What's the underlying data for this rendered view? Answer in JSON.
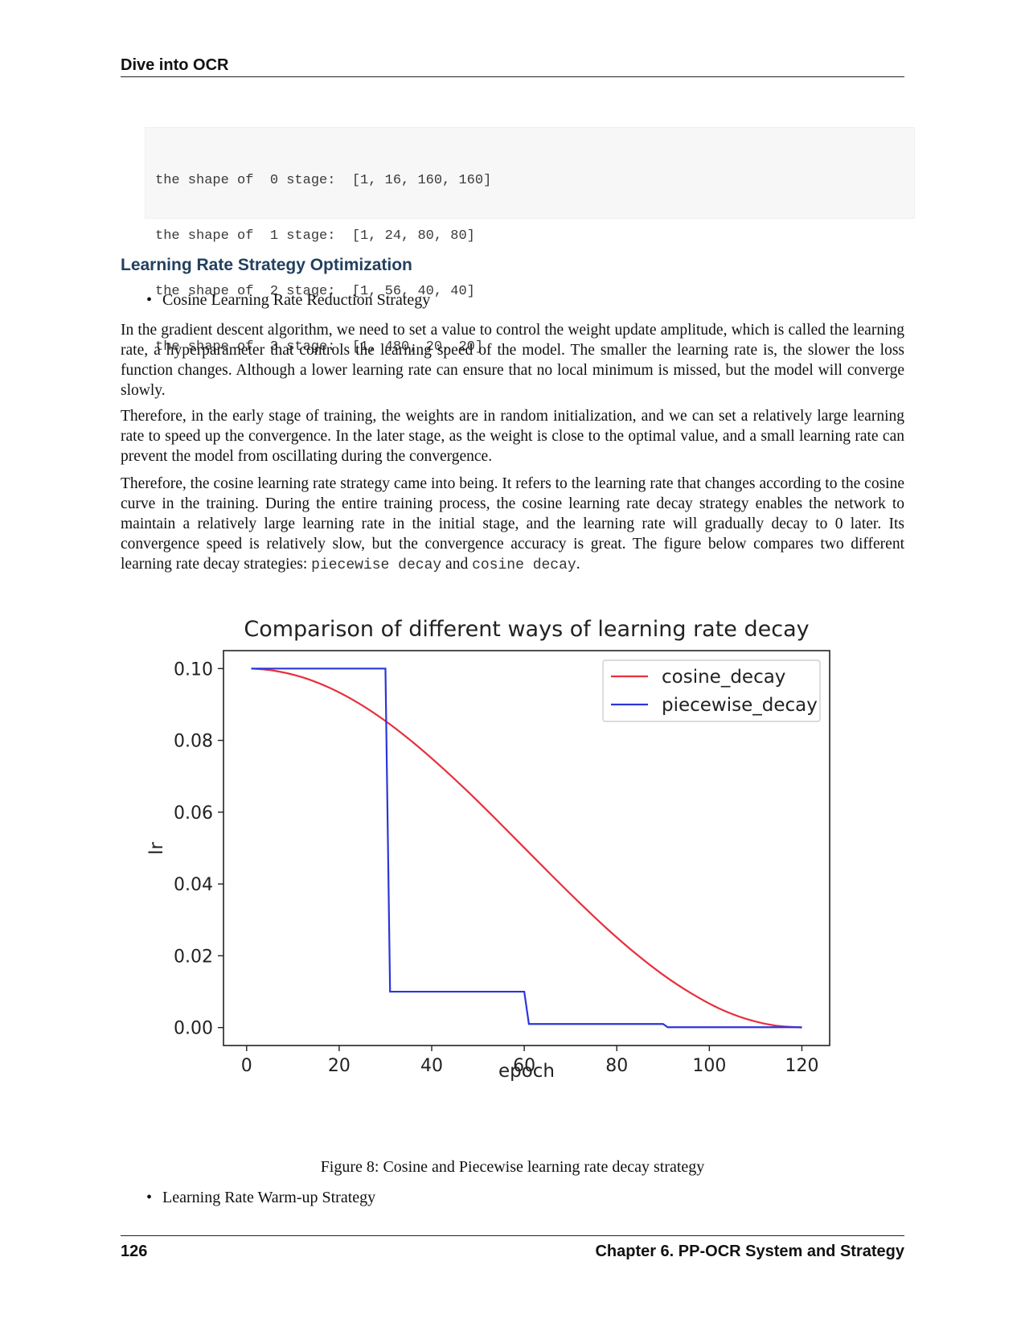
{
  "running_head": "Dive into OCR",
  "code_block": {
    "lines": [
      "the shape of  0 stage:  [1, 16, 160, 160]",
      "the shape of  1 stage:  [1, 24, 80, 80]",
      "the shape of  2 stage:  [1, 56, 40, 40]",
      "the shape of  3 stage:  [1, 480, 20, 20]"
    ]
  },
  "section_title": "Learning Rate Strategy Optimization",
  "bullets": {
    "first": "Cosine Learning Rate Reduction Strategy",
    "second": "Learning Rate Warm-up Strategy",
    "symbol": "•"
  },
  "paragraphs": {
    "p1": "In the gradient descent algorithm, we need to set a value to control the weight update amplitude, which is called the learning rate, a hyperparameter that controls the learning speed of the model. The smaller the learning rate is, the slower the loss function changes. Although a lower learning rate can ensure that no local minimum is missed, but the model will converge slowly.",
    "p2": "Therefore, in the early stage of training, the weights are in random initialization, and we can set a relatively large learning rate to speed up the convergence. In the later stage, as the weight is close to the optimal value, and a small learning rate can prevent the model from oscillating during the convergence.",
    "p3_text": "Therefore, the cosine learning rate strategy came into being. It refers to the learning rate that changes according to the cosine curve in the training. During the entire training process, the cosine learning rate decay strategy enables the network to maintain a relatively large learning rate in the initial stage, and the learning rate will gradually decay to 0 later. Its convergence speed is relatively slow, but the convergence accuracy is great. The figure below compares two different learning rate decay strategies: ",
    "p3_code1": "piecewise decay",
    "p3_and": " and ",
    "p3_code2": "cosine decay",
    "p3_end": "."
  },
  "caption": "Figure 8: Cosine and Piecewise learning rate decay strategy",
  "footer": {
    "page_number": "126",
    "chapter": "Chapter 6.  PP-OCR System and Strategy"
  },
  "chart_data": {
    "type": "line",
    "title": "Comparison of different ways of learning rate decay",
    "xlabel": "epoch",
    "ylabel": "lr",
    "xlim": [
      -5,
      126
    ],
    "ylim": [
      -0.005,
      0.105
    ],
    "xticks": [
      0,
      20,
      40,
      60,
      80,
      100,
      120
    ],
    "yticks": [
      0.0,
      0.02,
      0.04,
      0.06,
      0.08,
      0.1
    ],
    "ytick_labels": [
      "0.00",
      "0.02",
      "0.04",
      "0.06",
      "0.08",
      "0.10"
    ],
    "legend_position": "top-right",
    "grid": false,
    "series": [
      {
        "name": "cosine_decay",
        "color": "#e8303d",
        "x": [
          1,
          6,
          12,
          18,
          24,
          30,
          36,
          42,
          48,
          54,
          60,
          66,
          72,
          78,
          84,
          90,
          96,
          102,
          108,
          114,
          120
        ],
        "y": [
          0.1,
          0.0994,
          0.0976,
          0.0946,
          0.0905,
          0.0854,
          0.0794,
          0.0727,
          0.0655,
          0.0579,
          0.0501,
          0.0423,
          0.0347,
          0.0274,
          0.0207,
          0.0147,
          0.0096,
          0.0054,
          0.0024,
          0.0006,
          0.0
        ]
      },
      {
        "name": "piecewise_decay",
        "color": "#2b36d9",
        "x": [
          1,
          30,
          31,
          60,
          61,
          90,
          91,
          120
        ],
        "y": [
          0.1,
          0.1,
          0.01,
          0.01,
          0.001,
          0.001,
          0.0001,
          0.0001
        ]
      }
    ]
  }
}
